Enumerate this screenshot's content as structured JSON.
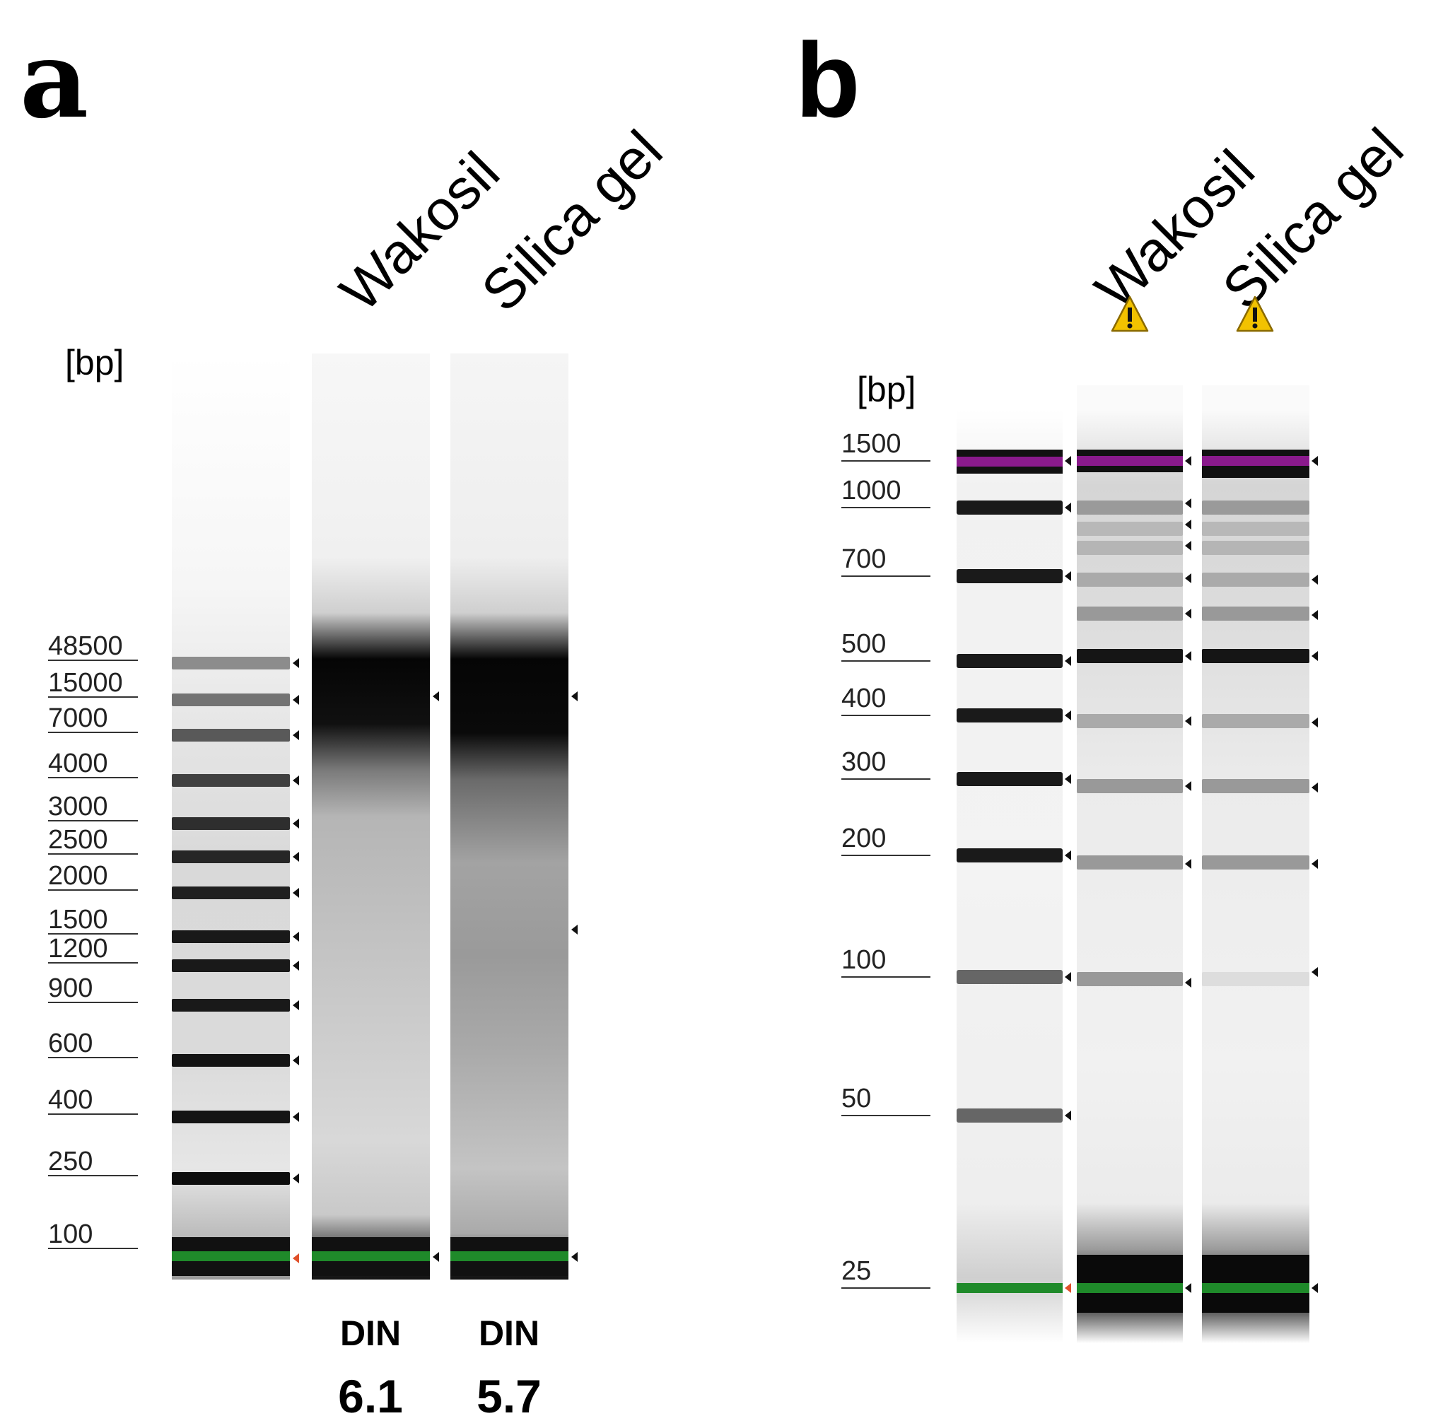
{
  "panel_a": {
    "letter": "a",
    "unit": "[bp]",
    "lane_labels": [
      "Wakosil",
      "Silica gel"
    ],
    "ladder": [
      "48500",
      "15000",
      "7000",
      "4000",
      "3000",
      "2500",
      "2000",
      "1500",
      "1200",
      "900",
      "600",
      "400",
      "250",
      "100"
    ],
    "din_label": "DIN",
    "din_values": [
      "6.1",
      "5.7"
    ]
  },
  "panel_b": {
    "letter": "b",
    "unit": "[bp]",
    "lane_labels": [
      "Wakosil",
      "Silica gel"
    ],
    "ladder": [
      "1500",
      "1000",
      "700",
      "500",
      "400",
      "300",
      "200",
      "100",
      "50",
      "25"
    ],
    "warning_icons": [
      "warning-icon",
      "warning-icon"
    ]
  },
  "colors": {
    "lower_marker": "#1f8a2a",
    "upper_marker": "#8a1a8c",
    "warning": "#f2c200",
    "marker_arrow_ladder": "#e0502a"
  }
}
